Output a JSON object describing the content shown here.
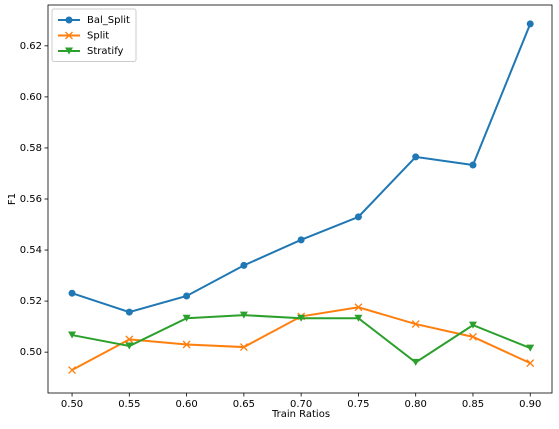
{
  "chart_data": {
    "type": "line",
    "x_label": "Train Ratios",
    "y_label": "F1",
    "x": [
      0.5,
      0.55,
      0.6,
      0.65,
      0.7,
      0.75,
      0.8,
      0.85,
      0.9
    ],
    "series": [
      {
        "name": "Bal_Split",
        "color": "#1f77b4",
        "marker": "o",
        "values": [
          0.5231,
          0.5157,
          0.522,
          0.534,
          0.544,
          0.553,
          0.5765,
          0.5733,
          0.6286
        ]
      },
      {
        "name": "Split",
        "color": "#ff7f0e",
        "marker": "x",
        "values": [
          0.493,
          0.505,
          0.503,
          0.502,
          0.514,
          0.5176,
          0.511,
          0.506,
          0.4957
        ]
      },
      {
        "name": "Stratify",
        "color": "#2ca02c",
        "marker": "v",
        "values": [
          0.5067,
          0.5024,
          0.5133,
          0.5145,
          0.5133,
          0.5133,
          0.496,
          0.5106,
          0.5016
        ]
      }
    ],
    "xlim": [
      0.479,
      0.919
    ],
    "ylim": [
      0.484,
      0.636
    ],
    "xticks": [
      {
        "value": 0.5,
        "label": "0.50"
      },
      {
        "value": 0.55,
        "label": "0.55"
      },
      {
        "value": 0.6,
        "label": "0.60"
      },
      {
        "value": 0.65,
        "label": "0.65"
      },
      {
        "value": 0.7,
        "label": "0.70"
      },
      {
        "value": 0.75,
        "label": "0.75"
      },
      {
        "value": 0.8,
        "label": "0.80"
      },
      {
        "value": 0.85,
        "label": "0.85"
      },
      {
        "value": 0.9,
        "label": "0.90"
      }
    ],
    "yticks": [
      {
        "value": 0.5,
        "label": "0.50"
      },
      {
        "value": 0.52,
        "label": "0.52"
      },
      {
        "value": 0.54,
        "label": "0.54"
      },
      {
        "value": 0.56,
        "label": "0.56"
      },
      {
        "value": 0.58,
        "label": "0.58"
      },
      {
        "value": 0.6,
        "label": "0.60"
      },
      {
        "value": 0.62,
        "label": "0.62"
      }
    ],
    "legend": "upper left",
    "grid": false
  }
}
